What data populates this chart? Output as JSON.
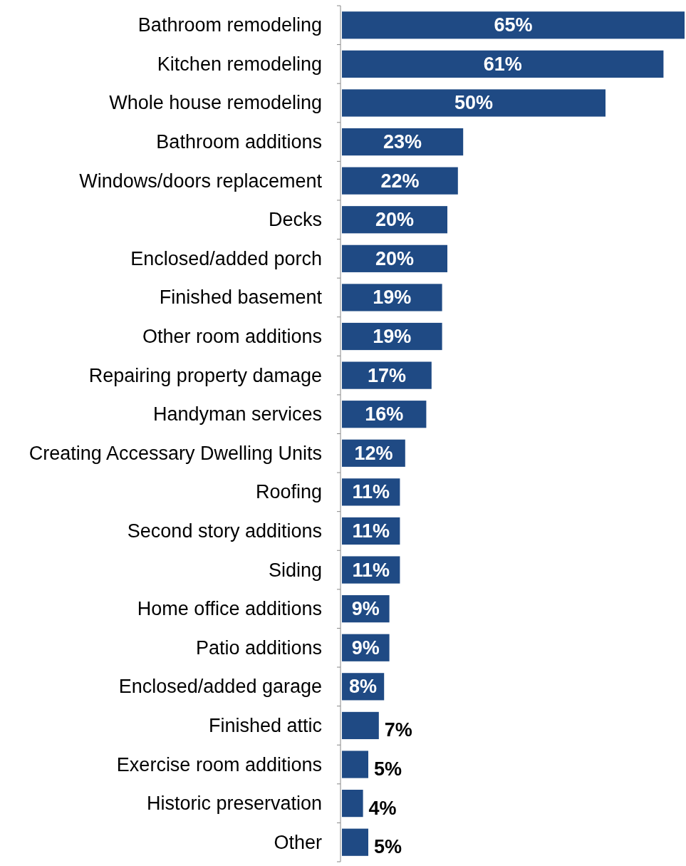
{
  "chart_data": {
    "type": "bar",
    "orientation": "horizontal",
    "color": "#1f4a84",
    "categories": [
      "Bathroom remodeling",
      "Kitchen remodeling",
      "Whole house remodeling",
      "Bathroom additions",
      "Windows/doors replacement",
      "Decks",
      "Enclosed/added porch",
      "Finished basement",
      "Other room additions",
      "Repairing property damage",
      "Handyman services",
      "Creating Accessary Dwelling Units",
      "Roofing",
      "Second story additions",
      "Siding",
      "Home office additions",
      "Patio additions",
      "Enclosed/added garage",
      "Finished attic",
      "Exercise room additions",
      "Historic preservation",
      "Other"
    ],
    "values": [
      65,
      61,
      50,
      23,
      22,
      20,
      20,
      19,
      19,
      17,
      16,
      12,
      11,
      11,
      11,
      9,
      9,
      8,
      7,
      5,
      4,
      5
    ],
    "value_labels": [
      "65%",
      "61%",
      "50%",
      "23%",
      "22%",
      "20%",
      "20%",
      "19%",
      "19%",
      "17%",
      "16%",
      "12%",
      "11%",
      "11%",
      "11%",
      "9%",
      "9%",
      "8%",
      "7%",
      "5%",
      "4%",
      "5%"
    ]
  }
}
